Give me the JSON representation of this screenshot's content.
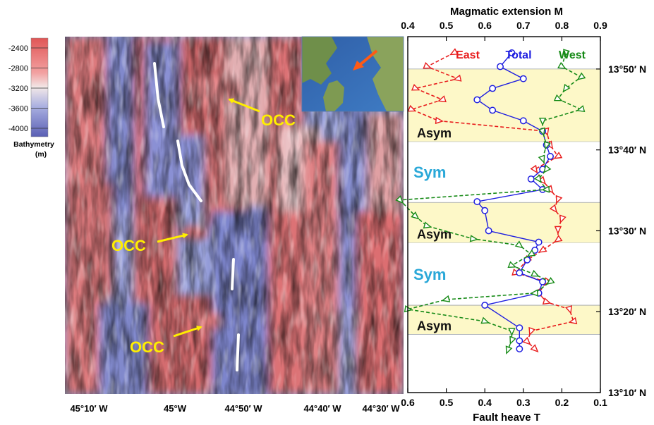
{
  "colorbar": {
    "ticks": [
      "-2400",
      "-2800",
      "-3200",
      "-3600",
      "-4000"
    ],
    "label_line1": "Bathymetry",
    "label_line2": "(m)",
    "colors": {
      "shallow": "#e05656",
      "mid": "#f2e8e8",
      "deep": "#5a5fb4"
    }
  },
  "map": {
    "x_tick_labels": [
      "45°10′ W",
      "45°W",
      "44°50′ W",
      "44°40′ W",
      "44°30′ W"
    ],
    "occ_labels": [
      "OCC",
      "OCC",
      "OCC"
    ],
    "annotation_color": "#ffee00",
    "inset_arrow_color": "#ff5a14"
  },
  "chart_data": {
    "type": "line",
    "title": "",
    "top_axis": {
      "label": "Magmatic extension M",
      "range": [
        0.4,
        0.9
      ],
      "tick_labels": [
        "0.4",
        "0.5",
        "0.6",
        "0.7",
        "0.8",
        "0.9"
      ]
    },
    "bottom_axis": {
      "label": "Fault heave T",
      "range": [
        0.6,
        0.1
      ],
      "reversed": true,
      "tick_labels": [
        "0.6",
        "0.5",
        "0.4",
        "0.3",
        "0.2",
        "0.1"
      ]
    },
    "y_axis": {
      "tick_labels": [
        "13°50′ N",
        "13°40′ N",
        "13°30′ N",
        "13°20′ N",
        "13°10′ N"
      ],
      "range_lat_minutes": [
        10,
        54
      ]
    },
    "legend": [
      "East",
      "Total",
      "West"
    ],
    "legend_placement": "top",
    "series": [
      {
        "name": "East",
        "color": "#e81c1c",
        "marker": "triangle",
        "dashed": true,
        "points": [
          [
            0.48,
            52.0
          ],
          [
            0.55,
            50.3
          ],
          [
            0.47,
            48.8
          ],
          [
            0.58,
            47.6
          ],
          [
            0.51,
            46.2
          ],
          [
            0.59,
            45.0
          ],
          [
            0.52,
            43.6
          ],
          [
            0.24,
            42.3
          ],
          [
            0.23,
            40.6
          ],
          [
            0.21,
            39.2
          ],
          [
            0.27,
            37.6
          ],
          [
            0.25,
            36.2
          ],
          [
            0.23,
            35.1
          ],
          [
            0.21,
            33.9
          ],
          [
            0.22,
            32.7
          ],
          [
            0.2,
            31.5
          ],
          [
            0.21,
            30.2
          ],
          [
            0.21,
            28.9
          ],
          [
            0.25,
            27.6
          ],
          [
            0.29,
            26.4
          ],
          [
            0.32,
            24.8
          ],
          [
            0.24,
            23.7
          ],
          [
            0.26,
            22.3
          ],
          [
            0.24,
            21.2
          ],
          [
            0.18,
            20.3
          ],
          [
            0.17,
            18.8
          ],
          [
            0.28,
            17.6
          ],
          [
            0.29,
            16.3
          ],
          [
            0.27,
            15.4
          ]
        ]
      },
      {
        "name": "Total",
        "color": "#1e1ee0",
        "marker": "circle",
        "dashed": false,
        "points": [
          [
            0.33,
            52.0
          ],
          [
            0.36,
            50.3
          ],
          [
            0.3,
            48.8
          ],
          [
            0.38,
            47.6
          ],
          [
            0.42,
            46.2
          ],
          [
            0.38,
            44.9
          ],
          [
            0.3,
            43.6
          ],
          [
            0.25,
            42.3
          ],
          [
            0.24,
            40.6
          ],
          [
            0.23,
            39.2
          ],
          [
            0.25,
            37.6
          ],
          [
            0.28,
            36.4
          ],
          [
            0.25,
            35.1
          ],
          [
            0.42,
            33.6
          ],
          [
            0.4,
            32.5
          ],
          [
            0.39,
            30.0
          ],
          [
            0.26,
            28.6
          ],
          [
            0.27,
            27.6
          ],
          [
            0.29,
            26.4
          ],
          [
            0.31,
            24.8
          ],
          [
            0.25,
            23.7
          ],
          [
            0.26,
            22.3
          ],
          [
            0.4,
            20.8
          ],
          [
            0.31,
            18.0
          ],
          [
            0.31,
            16.4
          ],
          [
            0.31,
            15.4
          ]
        ]
      },
      {
        "name": "West",
        "color": "#168a16",
        "marker": "triangle",
        "dashed": true,
        "points": [
          [
            0.19,
            52.0
          ],
          [
            0.2,
            50.3
          ],
          [
            0.15,
            49.0
          ],
          [
            0.19,
            47.6
          ],
          [
            0.21,
            46.3
          ],
          [
            0.15,
            45.0
          ],
          [
            0.25,
            43.6
          ],
          [
            0.25,
            42.3
          ],
          [
            0.24,
            40.6
          ],
          [
            0.25,
            38.9
          ],
          [
            0.24,
            37.6
          ],
          [
            0.26,
            36.4
          ],
          [
            0.24,
            35.1
          ],
          [
            0.62,
            33.8
          ],
          [
            0.58,
            31.8
          ],
          [
            0.55,
            30.6
          ],
          [
            0.43,
            29.0
          ],
          [
            0.31,
            28.2
          ],
          [
            0.28,
            27.1
          ],
          [
            0.33,
            25.7
          ],
          [
            0.27,
            24.6
          ],
          [
            0.23,
            23.7
          ],
          [
            0.27,
            22.3
          ],
          [
            0.5,
            21.5
          ],
          [
            0.6,
            20.3
          ],
          [
            0.4,
            18.8
          ],
          [
            0.33,
            17.6
          ],
          [
            0.33,
            16.5
          ],
          [
            0.34,
            15.3
          ]
        ]
      }
    ],
    "shaded_bands": [
      {
        "label": "Asym",
        "lat_range": [
          41.0,
          50.0
        ],
        "color": "#fdf8c8"
      },
      {
        "label": "Sym",
        "lat_range": [
          33.5,
          41.0
        ],
        "color": "#ffffff"
      },
      {
        "label": "Asym",
        "lat_range": [
          28.5,
          33.5
        ],
        "color": "#fdf8c8"
      },
      {
        "label": "Sym",
        "lat_range": [
          20.8,
          28.5
        ],
        "color": "#ffffff"
      },
      {
        "label": "Asym",
        "lat_range": [
          17.2,
          20.8
        ],
        "color": "#fdf8c8"
      }
    ],
    "sym_label_color": "#2aa8d8",
    "grid": false
  }
}
